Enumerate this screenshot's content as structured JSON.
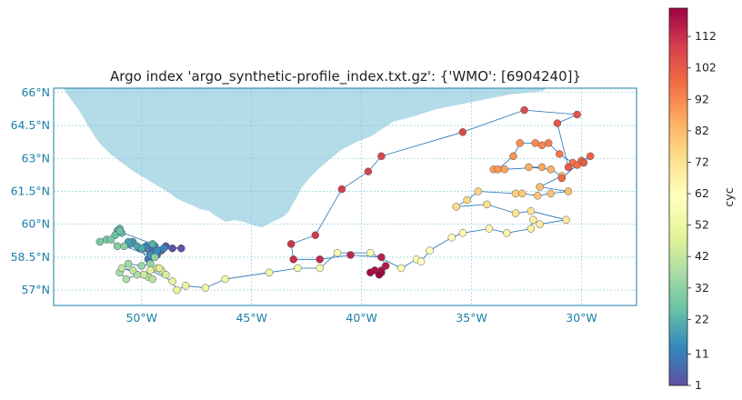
{
  "title": "Argo index 'argo_synthetic-profile_index.txt.gz': {'WMO': [6904240]}",
  "colors": {
    "land": "#b3dbe8",
    "track": "#1f6fb4",
    "axis": "#1a7fa6",
    "grid": "#7fc4d9"
  },
  "map": {
    "lon_range": [
      -54,
      -27.5
    ],
    "lat_range": [
      56.3,
      66.2
    ],
    "lon_ticks": [
      {
        "v": -50,
        "label": "50°W"
      },
      {
        "v": -45,
        "label": "45°W"
      },
      {
        "v": -40,
        "label": "40°W"
      },
      {
        "v": -35,
        "label": "35°W"
      },
      {
        "v": -30,
        "label": "30°W"
      }
    ],
    "lat_ticks": [
      {
        "v": 57,
        "label": "57°N"
      },
      {
        "v": 58.5,
        "label": "58.5°N"
      },
      {
        "v": 60,
        "label": "60°N"
      },
      {
        "v": 61.5,
        "label": "61.5°N"
      },
      {
        "v": 63,
        "label": "63°N"
      },
      {
        "v": 64.5,
        "label": "64.5°N"
      },
      {
        "v": 66,
        "label": "66°N"
      }
    ]
  },
  "colorbar": {
    "label": "cyc",
    "min": 1,
    "max": 121,
    "ticks": [
      1,
      11,
      22,
      32,
      42,
      52,
      62,
      72,
      82,
      92,
      102,
      112
    ],
    "colormap": "Spectral_r"
  },
  "chart_data": {
    "type": "scatter",
    "x_axis": "longitude",
    "y_axis": "latitude",
    "color_by": "cyc",
    "points": [
      [
        -48.6,
        58.9
      ],
      [
        -48.2,
        58.9
      ],
      [
        -48.9,
        59.0
      ],
      [
        -49.1,
        58.8
      ],
      [
        -49.6,
        58.7
      ],
      [
        -49.9,
        58.9
      ],
      [
        -49.5,
        58.9
      ],
      [
        -49.3,
        58.6
      ],
      [
        -49.7,
        58.4
      ],
      [
        -50.1,
        58.9
      ],
      [
        -49.8,
        59.0
      ],
      [
        -49.4,
        59.0
      ],
      [
        -49.0,
        58.9
      ],
      [
        -49.3,
        58.8
      ],
      [
        -49.6,
        58.6
      ],
      [
        -50.4,
        59.2
      ],
      [
        -50.5,
        59.1
      ],
      [
        -50.6,
        59.2
      ],
      [
        -50.2,
        59.0
      ],
      [
        -50.0,
        58.9
      ],
      [
        -49.5,
        59.1
      ],
      [
        -51.1,
        59.7
      ],
      [
        -51.0,
        59.8
      ],
      [
        -50.9,
        59.6
      ],
      [
        -51.2,
        59.5
      ],
      [
        -51.0,
        59.7
      ],
      [
        -51.6,
        59.3
      ],
      [
        -51.9,
        59.2
      ],
      [
        -51.4,
        59.3
      ],
      [
        -51.1,
        59.0
      ],
      [
        -50.8,
        59.0
      ],
      [
        -49.4,
        58.5
      ],
      [
        -49.6,
        58.2
      ],
      [
        -50.0,
        58.1
      ],
      [
        -50.6,
        58.2
      ],
      [
        -51.0,
        57.8
      ],
      [
        -50.7,
        57.5
      ],
      [
        -50.2,
        57.7
      ],
      [
        -49.7,
        57.6
      ],
      [
        -49.5,
        57.5
      ],
      [
        -50.4,
        57.9
      ],
      [
        -50.9,
        58.0
      ],
      [
        -49.9,
        57.7
      ],
      [
        -49.3,
        58.0
      ],
      [
        -49.1,
        57.9
      ],
      [
        -48.9,
        57.7
      ],
      [
        -49.2,
        58.0
      ],
      [
        -49.6,
        57.9
      ],
      [
        -48.6,
        57.4
      ],
      [
        -48.4,
        57.0
      ],
      [
        -48.0,
        57.2
      ],
      [
        -47.1,
        57.1
      ],
      [
        -46.2,
        57.5
      ],
      [
        -44.2,
        57.8
      ],
      [
        -42.9,
        58.0
      ],
      [
        -41.9,
        58.0
      ],
      [
        -41.1,
        58.7
      ],
      [
        -39.6,
        58.7
      ],
      [
        -38.2,
        58.0
      ],
      [
        -37.5,
        58.4
      ],
      [
        -37.3,
        58.3
      ],
      [
        -36.9,
        58.8
      ],
      [
        -35.9,
        59.4
      ],
      [
        -35.4,
        59.6
      ],
      [
        -34.2,
        59.8
      ],
      [
        -33.4,
        59.6
      ],
      [
        -32.3,
        59.8
      ],
      [
        -32.2,
        60.2
      ],
      [
        -31.9,
        60.0
      ],
      [
        -30.7,
        60.2
      ],
      [
        -32.3,
        60.6
      ],
      [
        -33.0,
        60.5
      ],
      [
        -34.3,
        60.9
      ],
      [
        -35.7,
        60.8
      ],
      [
        -35.2,
        61.1
      ],
      [
        -34.7,
        61.5
      ],
      [
        -33.0,
        61.4
      ],
      [
        -32.7,
        61.4
      ],
      [
        -32.0,
        61.3
      ],
      [
        -31.4,
        61.4
      ],
      [
        -30.6,
        61.5
      ],
      [
        -31.9,
        61.7
      ],
      [
        -30.9,
        62.2
      ],
      [
        -31.4,
        62.5
      ],
      [
        -32.4,
        62.6
      ],
      [
        -31.8,
        62.6
      ],
      [
        -33.5,
        62.5
      ],
      [
        -34.0,
        62.5
      ],
      [
        -33.8,
        62.5
      ],
      [
        -33.1,
        63.1
      ],
      [
        -32.8,
        63.7
      ],
      [
        -32.1,
        63.7
      ],
      [
        -31.8,
        63.6
      ],
      [
        -31.5,
        63.7
      ],
      [
        -31.0,
        63.2
      ],
      [
        -30.4,
        62.8
      ],
      [
        -30.2,
        62.7
      ],
      [
        -30.9,
        62.1
      ],
      [
        -30.0,
        62.9
      ],
      [
        -29.6,
        63.1
      ],
      [
        -29.9,
        62.8
      ],
      [
        -30.6,
        62.6
      ],
      [
        -31.1,
        64.6
      ],
      [
        -30.2,
        65.0
      ],
      [
        -32.6,
        65.2
      ],
      [
        -35.4,
        64.2
      ],
      [
        -39.1,
        63.1
      ],
      [
        -39.7,
        62.4
      ],
      [
        -40.9,
        61.6
      ],
      [
        -42.1,
        59.5
      ],
      [
        -43.2,
        59.1
      ],
      [
        -43.1,
        58.4
      ],
      [
        -41.9,
        58.4
      ],
      [
        -40.5,
        58.6
      ],
      [
        -39.1,
        58.5
      ],
      [
        -38.9,
        58.1
      ],
      [
        -39.1,
        57.9
      ],
      [
        -39.4,
        57.9
      ],
      [
        -39.6,
        57.8
      ],
      [
        -39.1,
        57.8
      ],
      [
        -39.2,
        57.7
      ]
    ],
    "cyc_start": 1
  }
}
